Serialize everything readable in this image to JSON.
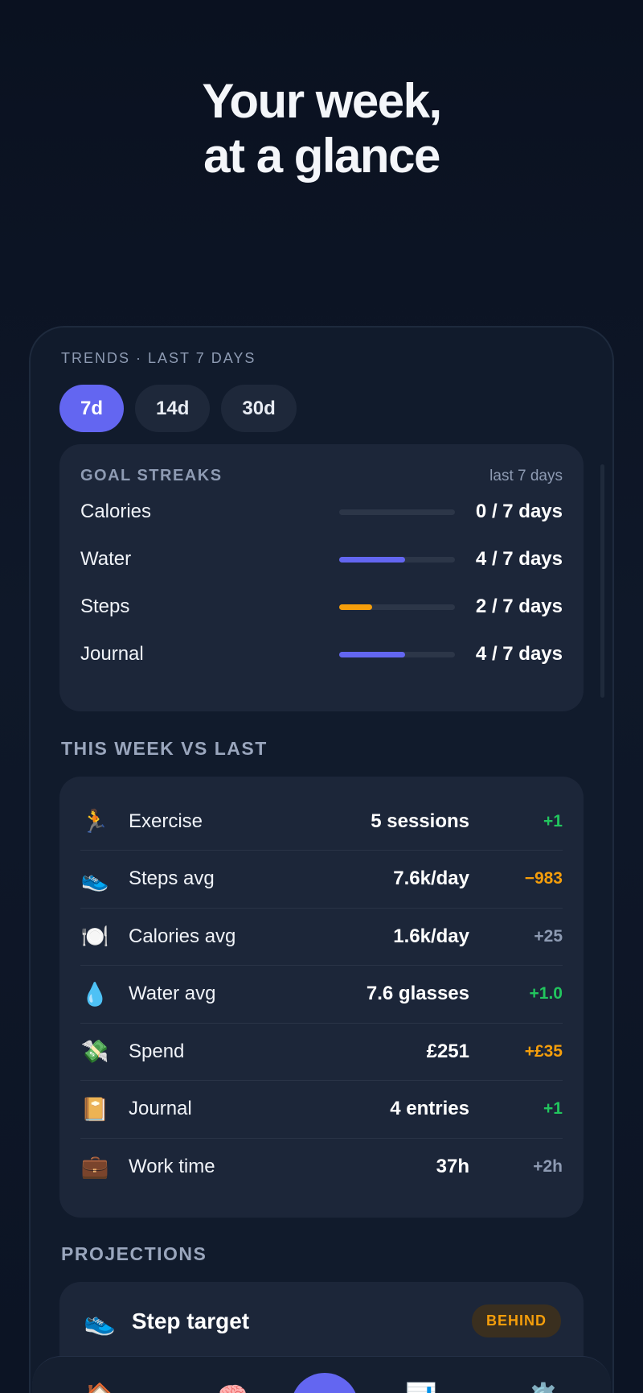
{
  "hero": {
    "line1": "Your week,",
    "line2": "at a glance"
  },
  "trends_label": "TRENDS · LAST 7 DAYS",
  "ranges": [
    {
      "label": "7d",
      "active": true
    },
    {
      "label": "14d",
      "active": false
    },
    {
      "label": "30d",
      "active": false
    }
  ],
  "goal_streaks": {
    "title": "GOAL STREAKS",
    "subtitle": "last 7 days",
    "rows": [
      {
        "name": "Calories",
        "value": "0 / 7 days",
        "progress": 0.0,
        "color": "#6366f1"
      },
      {
        "name": "Water",
        "value": "4 / 7 days",
        "progress": 0.5714,
        "color": "#6366f1"
      },
      {
        "name": "Steps",
        "value": "2 / 7 days",
        "progress": 0.2857,
        "color": "#f59e0b"
      },
      {
        "name": "Journal",
        "value": "4 / 7 days",
        "progress": 0.5714,
        "color": "#6366f1"
      }
    ]
  },
  "compare": {
    "title": "THIS WEEK VS LAST",
    "rows": [
      {
        "icon": "🏃",
        "icon_name": "runner-icon",
        "label": "Exercise",
        "amount": "5 sessions",
        "change": "+1",
        "change_color": "#22c55e"
      },
      {
        "icon": "👟",
        "icon_name": "sneaker-icon",
        "label": "Steps avg",
        "amount": "7.6k/day",
        "change": "−983",
        "change_color": "#f59e0b"
      },
      {
        "icon": "🍽️",
        "icon_name": "plate-icon",
        "label": "Calories avg",
        "amount": "1.6k/day",
        "change": "+25",
        "change_color": "#8e9bb3"
      },
      {
        "icon": "💧",
        "icon_name": "droplet-icon",
        "label": "Water avg",
        "amount": "7.6 glasses",
        "change": "+1.0",
        "change_color": "#22c55e"
      },
      {
        "icon": "💸",
        "icon_name": "money-wings-icon",
        "label": "Spend",
        "amount": "£251",
        "change": "+£35",
        "change_color": "#f59e0b"
      },
      {
        "icon": "📔",
        "icon_name": "notebook-icon",
        "label": "Journal",
        "amount": "4 entries",
        "change": "+1",
        "change_color": "#22c55e"
      },
      {
        "icon": "💼",
        "icon_name": "briefcase-icon",
        "label": "Work time",
        "amount": "37h",
        "change": "+2h",
        "change_color": "#8e9bb3"
      }
    ]
  },
  "projections": {
    "title": "PROJECTIONS",
    "card": {
      "icon": "👟",
      "icon_name": "sneaker-icon",
      "label": "Step target",
      "badge": "BEHIND"
    }
  },
  "tabbar": {
    "tabs": [
      {
        "icon": "🏠",
        "icon_name": "home-icon"
      },
      {
        "icon": "🧠",
        "icon_name": "brain-icon"
      },
      {
        "icon": "📊",
        "icon_name": "bar-chart-icon"
      },
      {
        "icon": "⚙️",
        "icon_name": "gear-icon"
      }
    ]
  }
}
